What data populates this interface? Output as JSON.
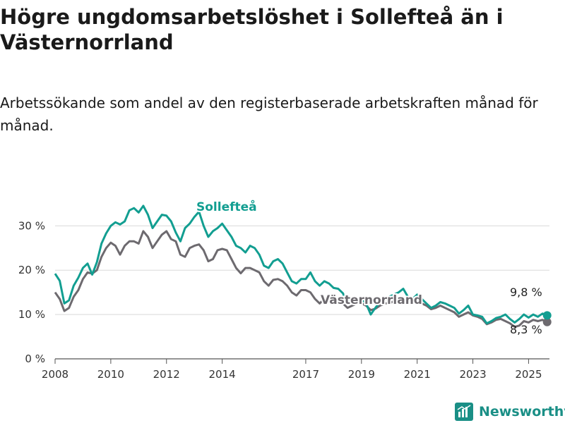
{
  "chart_data": {
    "type": "line",
    "title": "Högre ungdomsarbetslöshet i Sollefteå än i Västernorrland",
    "subtitle": "Arbetssökande som andel av den registerbaserade arbetskraften månad för månad.",
    "ylim": [
      0,
      38
    ],
    "x_range": [
      "2008-01",
      "2025-10"
    ],
    "y_ticks": [
      0,
      10,
      20,
      30
    ],
    "y_tick_labels": [
      "0 %",
      "10 %",
      "20 %",
      "30 %"
    ],
    "x_tick_labels": [
      "2008",
      "2010",
      "2012",
      "2014",
      "2017",
      "2019",
      "2021",
      "2023",
      "2025"
    ],
    "grid": true,
    "colors": {
      "Sollefteå": "#129e91",
      "Västernorrland": "#6d6a6f"
    },
    "series": [
      {
        "name": "Sollefteå",
        "points": [
          [
            "2008-01",
            19.2
          ],
          [
            "2008-03",
            17.6
          ],
          [
            "2008-05",
            12.5
          ],
          [
            "2008-07",
            13.2
          ],
          [
            "2008-09",
            16.5
          ],
          [
            "2008-11",
            18.3
          ],
          [
            "2009-01",
            20.5
          ],
          [
            "2009-03",
            21.5
          ],
          [
            "2009-05",
            19.0
          ],
          [
            "2009-07",
            21.8
          ],
          [
            "2009-09",
            26.0
          ],
          [
            "2009-11",
            28.3
          ],
          [
            "2010-01",
            30.0
          ],
          [
            "2010-03",
            30.8
          ],
          [
            "2010-05",
            30.3
          ],
          [
            "2010-07",
            31.0
          ],
          [
            "2010-09",
            33.5
          ],
          [
            "2010-11",
            34.0
          ],
          [
            "2011-01",
            33.0
          ],
          [
            "2011-03",
            34.5
          ],
          [
            "2011-05",
            32.5
          ],
          [
            "2011-07",
            29.5
          ],
          [
            "2011-09",
            31.0
          ],
          [
            "2011-11",
            32.5
          ],
          [
            "2012-01",
            32.3
          ],
          [
            "2012-03",
            31.0
          ],
          [
            "2012-05",
            28.5
          ],
          [
            "2012-07",
            26.5
          ],
          [
            "2012-09",
            29.5
          ],
          [
            "2012-11",
            30.5
          ],
          [
            "2013-01",
            32.0
          ],
          [
            "2013-03",
            33.2
          ],
          [
            "2013-05",
            30.0
          ],
          [
            "2013-07",
            27.5
          ],
          [
            "2013-09",
            28.8
          ],
          [
            "2013-11",
            29.5
          ],
          [
            "2014-01",
            30.5
          ],
          [
            "2014-03",
            29.0
          ],
          [
            "2014-05",
            27.5
          ],
          [
            "2014-07",
            25.5
          ],
          [
            "2014-09",
            25.0
          ],
          [
            "2014-11",
            24.0
          ],
          [
            "2015-01",
            25.5
          ],
          [
            "2015-03",
            25.0
          ],
          [
            "2015-05",
            23.5
          ],
          [
            "2015-07",
            21.0
          ],
          [
            "2015-09",
            20.5
          ],
          [
            "2015-11",
            22.0
          ],
          [
            "2016-01",
            22.5
          ],
          [
            "2016-03",
            21.5
          ],
          [
            "2016-05",
            19.5
          ],
          [
            "2016-07",
            17.5
          ],
          [
            "2016-09",
            17.0
          ],
          [
            "2016-11",
            18.0
          ],
          [
            "2017-01",
            18.0
          ],
          [
            "2017-03",
            19.5
          ],
          [
            "2017-05",
            17.5
          ],
          [
            "2017-07",
            16.5
          ],
          [
            "2017-09",
            17.5
          ],
          [
            "2017-11",
            17.0
          ],
          [
            "2018-01",
            16.0
          ],
          [
            "2018-03",
            15.8
          ],
          [
            "2018-05",
            14.8
          ],
          [
            "2018-07",
            12.5
          ],
          [
            "2018-09",
            13.5
          ],
          [
            "2018-11",
            13.0
          ],
          [
            "2019-01",
            13.5
          ],
          [
            "2019-03",
            12.5
          ],
          [
            "2019-05",
            10.0
          ],
          [
            "2019-07",
            11.5
          ],
          [
            "2019-09",
            12.8
          ],
          [
            "2019-11",
            13.5
          ],
          [
            "2020-01",
            14.0
          ],
          [
            "2020-03",
            14.5
          ],
          [
            "2020-05",
            15.0
          ],
          [
            "2020-07",
            15.8
          ],
          [
            "2020-09",
            14.0
          ],
          [
            "2020-11",
            13.5
          ],
          [
            "2021-01",
            14.5
          ],
          [
            "2021-03",
            13.5
          ],
          [
            "2021-05",
            12.5
          ],
          [
            "2021-07",
            11.5
          ],
          [
            "2021-09",
            12.0
          ],
          [
            "2021-11",
            12.8
          ],
          [
            "2022-01",
            12.5
          ],
          [
            "2022-03",
            12.0
          ],
          [
            "2022-05",
            11.5
          ],
          [
            "2022-07",
            10.2
          ],
          [
            "2022-09",
            11.0
          ],
          [
            "2022-11",
            12.0
          ],
          [
            "2023-01",
            10.0
          ],
          [
            "2023-03",
            9.8
          ],
          [
            "2023-05",
            9.5
          ],
          [
            "2023-07",
            8.0
          ],
          [
            "2023-09",
            8.5
          ],
          [
            "2023-11",
            9.2
          ],
          [
            "2024-01",
            9.5
          ],
          [
            "2024-03",
            10.0
          ],
          [
            "2024-05",
            9.0
          ],
          [
            "2024-07",
            8.2
          ],
          [
            "2024-09",
            9.0
          ],
          [
            "2024-11",
            10.0
          ],
          [
            "2025-01",
            9.3
          ],
          [
            "2025-03",
            10.0
          ],
          [
            "2025-05",
            9.5
          ],
          [
            "2025-07",
            10.2
          ],
          [
            "2025-09",
            9.8
          ]
        ]
      },
      {
        "name": "Västernorrland",
        "points": [
          [
            "2008-01",
            15.0
          ],
          [
            "2008-03",
            13.5
          ],
          [
            "2008-05",
            10.8
          ],
          [
            "2008-07",
            11.5
          ],
          [
            "2008-09",
            14.0
          ],
          [
            "2008-11",
            15.5
          ],
          [
            "2009-01",
            18.0
          ],
          [
            "2009-03",
            19.5
          ],
          [
            "2009-05",
            19.2
          ],
          [
            "2009-07",
            20.0
          ],
          [
            "2009-09",
            23.0
          ],
          [
            "2009-11",
            25.0
          ],
          [
            "2010-01",
            26.2
          ],
          [
            "2010-03",
            25.5
          ],
          [
            "2010-05",
            23.5
          ],
          [
            "2010-07",
            25.5
          ],
          [
            "2010-09",
            26.5
          ],
          [
            "2010-11",
            26.5
          ],
          [
            "2011-01",
            26.0
          ],
          [
            "2011-03",
            28.8
          ],
          [
            "2011-05",
            27.5
          ],
          [
            "2011-07",
            25.0
          ],
          [
            "2011-09",
            26.5
          ],
          [
            "2011-11",
            28.0
          ],
          [
            "2012-01",
            28.8
          ],
          [
            "2012-03",
            27.0
          ],
          [
            "2012-05",
            26.5
          ],
          [
            "2012-07",
            23.5
          ],
          [
            "2012-09",
            23.0
          ],
          [
            "2012-11",
            25.0
          ],
          [
            "2013-01",
            25.5
          ],
          [
            "2013-03",
            25.8
          ],
          [
            "2013-05",
            24.5
          ],
          [
            "2013-07",
            22.0
          ],
          [
            "2013-09",
            22.5
          ],
          [
            "2013-11",
            24.5
          ],
          [
            "2014-01",
            24.8
          ],
          [
            "2014-03",
            24.5
          ],
          [
            "2014-05",
            22.5
          ],
          [
            "2014-07",
            20.5
          ],
          [
            "2014-09",
            19.3
          ],
          [
            "2014-11",
            20.5
          ],
          [
            "2015-01",
            20.5
          ],
          [
            "2015-03",
            20.0
          ],
          [
            "2015-05",
            19.5
          ],
          [
            "2015-07",
            17.5
          ],
          [
            "2015-09",
            16.5
          ],
          [
            "2015-11",
            17.8
          ],
          [
            "2016-01",
            18.0
          ],
          [
            "2016-03",
            17.5
          ],
          [
            "2016-05",
            16.5
          ],
          [
            "2016-07",
            15.0
          ],
          [
            "2016-09",
            14.3
          ],
          [
            "2016-11",
            15.5
          ],
          [
            "2017-01",
            15.5
          ],
          [
            "2017-03",
            15.0
          ],
          [
            "2017-05",
            13.5
          ],
          [
            "2017-07",
            12.5
          ],
          [
            "2017-09",
            13.5
          ],
          [
            "2017-11",
            13.8
          ],
          [
            "2018-01",
            13.5
          ],
          [
            "2018-03",
            13.0
          ],
          [
            "2018-05",
            12.5
          ],
          [
            "2018-07",
            11.5
          ],
          [
            "2018-09",
            12.0
          ],
          [
            "2018-11",
            12.5
          ],
          [
            "2019-01",
            12.5
          ],
          [
            "2019-03",
            12.0
          ],
          [
            "2019-05",
            11.0
          ],
          [
            "2019-07",
            11.3
          ],
          [
            "2019-09",
            12.0
          ],
          [
            "2019-11",
            12.5
          ],
          [
            "2020-01",
            12.5
          ],
          [
            "2020-03",
            13.0
          ],
          [
            "2020-05",
            13.5
          ],
          [
            "2020-07",
            13.8
          ],
          [
            "2020-09",
            13.0
          ],
          [
            "2020-11",
            12.8
          ],
          [
            "2021-01",
            13.5
          ],
          [
            "2021-03",
            12.5
          ],
          [
            "2021-05",
            12.0
          ],
          [
            "2021-07",
            11.2
          ],
          [
            "2021-09",
            11.5
          ],
          [
            "2021-11",
            12.0
          ],
          [
            "2022-01",
            11.5
          ],
          [
            "2022-03",
            11.0
          ],
          [
            "2022-05",
            10.5
          ],
          [
            "2022-07",
            9.5
          ],
          [
            "2022-09",
            10.0
          ],
          [
            "2022-11",
            10.5
          ],
          [
            "2023-01",
            9.8
          ],
          [
            "2023-03",
            9.5
          ],
          [
            "2023-05",
            9.0
          ],
          [
            "2023-07",
            7.8
          ],
          [
            "2023-09",
            8.2
          ],
          [
            "2023-11",
            8.8
          ],
          [
            "2024-01",
            9.0
          ],
          [
            "2024-03",
            8.5
          ],
          [
            "2024-05",
            8.0
          ],
          [
            "2024-07",
            7.2
          ],
          [
            "2024-09",
            7.5
          ],
          [
            "2024-11",
            8.5
          ],
          [
            "2025-01",
            8.2
          ],
          [
            "2025-03",
            8.8
          ],
          [
            "2025-05",
            8.5
          ],
          [
            "2025-07",
            8.8
          ],
          [
            "2025-09",
            8.3
          ]
        ]
      }
    ],
    "end_labels": {
      "Sollefteå": "9,8 %",
      "Västernorrland": "8,3 %"
    }
  },
  "brand": {
    "name": "Newsworthy"
  }
}
